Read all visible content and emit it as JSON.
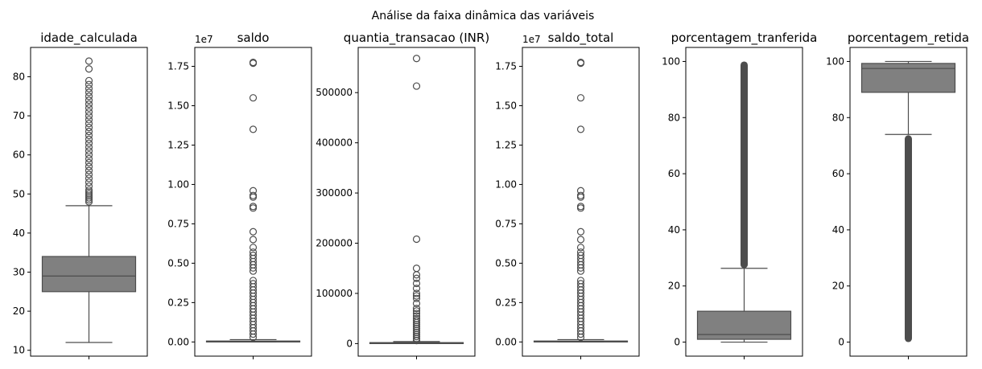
{
  "figure": {
    "title": "Análise da faixa dinâmica das variáveis"
  },
  "chart_data": [
    {
      "type": "box",
      "title": "idade_calculada",
      "xlabel": "",
      "ylabel": "",
      "ylim": [
        8.5,
        87.5
      ],
      "yticks": [
        10,
        20,
        30,
        40,
        50,
        60,
        70,
        80
      ],
      "ytick_labels": [
        "10",
        "20",
        "30",
        "40",
        "50",
        "60",
        "70",
        "80"
      ],
      "offset_label": "",
      "whisker_low": 12,
      "q1": 25,
      "median": 29,
      "q3": 34,
      "whisker_high": 47,
      "outliers": [
        48,
        48.5,
        49,
        49.5,
        50,
        50.5,
        51,
        52,
        53,
        54,
        55,
        56,
        57,
        58,
        59,
        60,
        61,
        62,
        63,
        64,
        65,
        66,
        67,
        68,
        69,
        70,
        71,
        72,
        73,
        74,
        75,
        76,
        77,
        78,
        79,
        82,
        84
      ],
      "outlier_band": []
    },
    {
      "type": "box",
      "title": "saldo",
      "xlabel": "",
      "ylabel": "",
      "ylim": [
        -900000,
        18700000
      ],
      "yticks": [
        0,
        2500000,
        5000000,
        7500000,
        10000000,
        12500000,
        15000000,
        17500000
      ],
      "ytick_labels": [
        "0.00",
        "0.25",
        "0.50",
        "0.75",
        "1.00",
        "1.25",
        "1.50",
        "1.75"
      ],
      "offset_label": "1e7",
      "whisker_low": 0,
      "q1": 0,
      "median": 20000,
      "q3": 60000,
      "whisker_high": 150000,
      "outliers": [
        300000,
        500000,
        700000,
        900000,
        1100000,
        1300000,
        1500000,
        1700000,
        1900000,
        2100000,
        2300000,
        2500000,
        2700000,
        2900000,
        3100000,
        3300000,
        3500000,
        3700000,
        3900000,
        4500000,
        4700000,
        4900000,
        5100000,
        5300000,
        5500000,
        5700000,
        6000000,
        6500000,
        7000000,
        8500000,
        8600000,
        9200000,
        9300000,
        9600000,
        13500000,
        15500000,
        17700000,
        17750000
      ],
      "outlier_band": []
    },
    {
      "type": "box",
      "title": "quantia_transacao (INR)",
      "xlabel": "",
      "ylabel": "",
      "ylim": [
        -25000,
        590000
      ],
      "yticks": [
        0,
        100000,
        200000,
        300000,
        400000,
        500000
      ],
      "ytick_labels": [
        "0",
        "100000",
        "200000",
        "300000",
        "400000",
        "500000"
      ],
      "offset_label": "",
      "whisker_low": 0,
      "q1": 0,
      "median": 800,
      "q3": 2000,
      "whisker_high": 4000,
      "outliers": [
        6000,
        10000,
        14000,
        18000,
        22000,
        26000,
        30000,
        34000,
        38000,
        42000,
        46000,
        50000,
        55000,
        60000,
        65000,
        70000,
        80000,
        90000,
        95000,
        100000,
        110000,
        120000,
        130000,
        137000,
        150000,
        208000,
        513000,
        568000
      ],
      "outlier_band": []
    },
    {
      "type": "box",
      "title": "saldo_total",
      "xlabel": "",
      "ylabel": "",
      "ylim": [
        -900000,
        18700000
      ],
      "yticks": [
        0,
        2500000,
        5000000,
        7500000,
        10000000,
        12500000,
        15000000,
        17500000
      ],
      "ytick_labels": [
        "0.00",
        "0.25",
        "0.50",
        "0.75",
        "1.00",
        "1.25",
        "1.50",
        "1.75"
      ],
      "offset_label": "1e7",
      "whisker_low": 0,
      "q1": 0,
      "median": 20000,
      "q3": 60000,
      "whisker_high": 150000,
      "outliers": [
        300000,
        500000,
        700000,
        900000,
        1100000,
        1300000,
        1500000,
        1700000,
        1900000,
        2100000,
        2300000,
        2500000,
        2700000,
        2900000,
        3100000,
        3300000,
        3500000,
        3700000,
        3900000,
        4500000,
        4700000,
        4900000,
        5100000,
        5300000,
        5500000,
        5700000,
        6000000,
        6500000,
        7000000,
        8500000,
        8600000,
        9200000,
        9300000,
        9600000,
        13500000,
        15500000,
        17700000,
        17750000
      ],
      "outlier_band": []
    },
    {
      "type": "box",
      "title": "porcentagem_tranferida",
      "xlabel": "",
      "ylabel": "",
      "ylim": [
        -5,
        105
      ],
      "yticks": [
        0,
        20,
        40,
        60,
        80,
        100
      ],
      "ytick_labels": [
        "0",
        "20",
        "40",
        "60",
        "80",
        "100"
      ],
      "offset_label": "",
      "whisker_low": 0,
      "q1": 1,
      "median": 2.7,
      "q3": 11,
      "whisker_high": 26.3,
      "outliers": [],
      "outlier_band": [
        26.3,
        100
      ]
    },
    {
      "type": "box",
      "title": "porcentagem_retida",
      "xlabel": "",
      "ylabel": "",
      "ylim": [
        -5,
        105
      ],
      "yticks": [
        0,
        20,
        40,
        60,
        80,
        100
      ],
      "ytick_labels": [
        "0",
        "20",
        "40",
        "60",
        "80",
        "100"
      ],
      "offset_label": "",
      "whisker_low": 74,
      "q1": 89,
      "median": 97.5,
      "q3": 99.3,
      "whisker_high": 100,
      "outliers": [],
      "outlier_band": [
        0,
        73.7
      ]
    }
  ]
}
